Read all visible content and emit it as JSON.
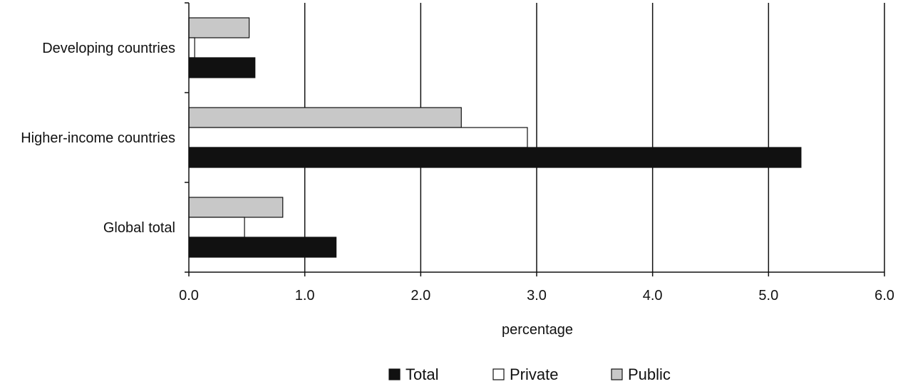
{
  "chart_data": {
    "type": "bar",
    "orientation": "horizontal",
    "categories": [
      "Developing countries",
      "Higher-income countries",
      "Global total"
    ],
    "series": [
      {
        "name": "Total",
        "values": [
          0.57,
          5.28,
          1.27
        ],
        "color": "#111111"
      },
      {
        "name": "Private",
        "values": [
          0.05,
          2.92,
          0.48
        ],
        "color": "#ffffff"
      },
      {
        "name": "Public",
        "values": [
          0.52,
          2.35,
          0.81
        ],
        "color": "#c8c8c8"
      }
    ],
    "xlabel": "percentage",
    "xlim": [
      0,
      6
    ],
    "xticks": [
      "0.0",
      "1.0",
      "2.0",
      "3.0",
      "4.0",
      "5.0",
      "6.0"
    ],
    "grid": "vertical",
    "legend_position": "bottom"
  }
}
